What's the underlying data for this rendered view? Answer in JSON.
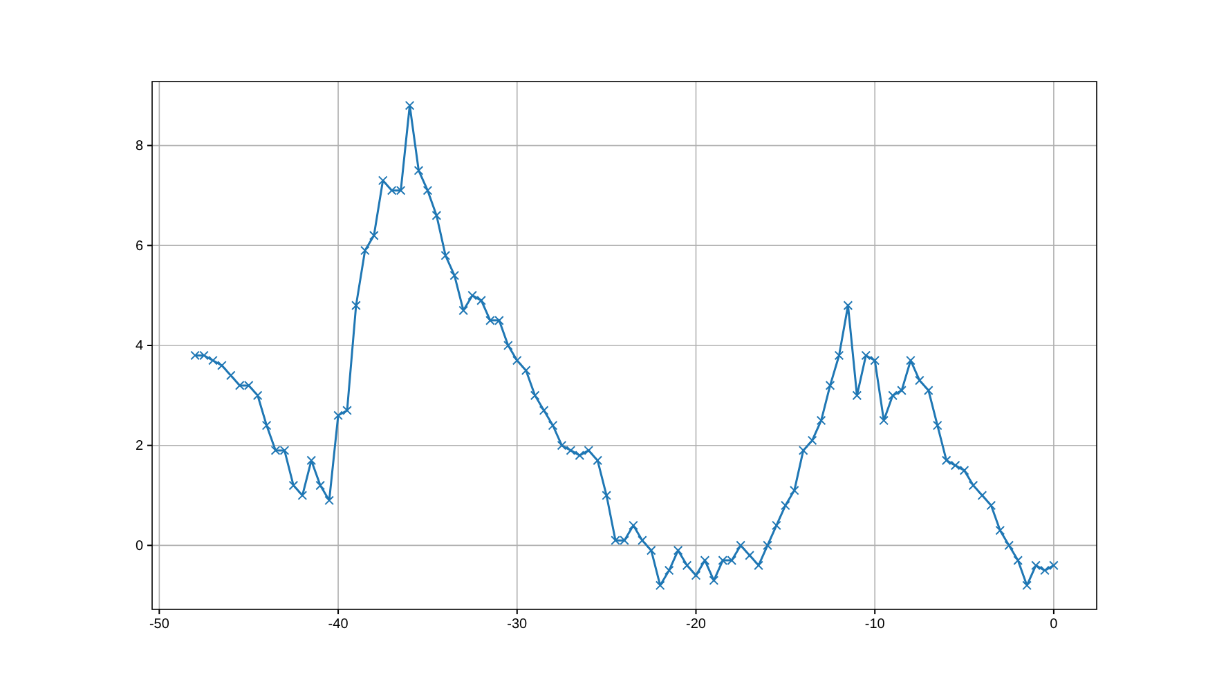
{
  "chart_data": {
    "type": "line",
    "x": [
      -48,
      -47.5,
      -47,
      -46.5,
      -46,
      -45.5,
      -45,
      -44.5,
      -44,
      -43.5,
      -43,
      -42.5,
      -42,
      -41.5,
      -41,
      -40.5,
      -40,
      -39.5,
      -39,
      -38.5,
      -38,
      -37.5,
      -37,
      -36.5,
      -36,
      -35.5,
      -35,
      -34.5,
      -34,
      -33.5,
      -33,
      -32.5,
      -32,
      -31.5,
      -31,
      -30.5,
      -30,
      -29.5,
      -29,
      -28.5,
      -28,
      -27.5,
      -27,
      -26.5,
      -26,
      -25.5,
      -25,
      -24.5,
      -24,
      -23.5,
      -23,
      -22.5,
      -22,
      -21.5,
      -21,
      -20.5,
      -20,
      -19.5,
      -19,
      -18.5,
      -18,
      -17.5,
      -17,
      -16.5,
      -16,
      -15.5,
      -15,
      -14.5,
      -14,
      -13.5,
      -13,
      -12.5,
      -12,
      -11.5,
      -11,
      -10.5,
      -10,
      -9.5,
      -9,
      -8.5,
      -8,
      -7.5,
      -7,
      -6.5,
      -6,
      -5.5,
      -5,
      -4.5,
      -4,
      -3.5,
      -3,
      -2.5,
      -2,
      -1.5,
      -1,
      -0.5,
      0
    ],
    "series": [
      {
        "color": "#1f77b4",
        "values": [
          3.8,
          3.8,
          3.7,
          3.6,
          3.4,
          3.2,
          3.2,
          3.0,
          2.4,
          1.9,
          1.9,
          1.2,
          1.0,
          1.7,
          1.2,
          0.9,
          2.6,
          2.7,
          4.8,
          5.9,
          6.2,
          7.3,
          7.1,
          7.1,
          8.8,
          7.5,
          7.1,
          6.6,
          5.8,
          5.4,
          4.7,
          5.0,
          4.9,
          4.5,
          4.5,
          4.0,
          3.7,
          3.5,
          3.0,
          2.7,
          2.4,
          2.0,
          1.9,
          1.8,
          1.9,
          1.7,
          1.0,
          0.1,
          0.1,
          0.4,
          0.1,
          -0.1,
          -0.8,
          -0.5,
          -0.1,
          -0.4,
          -0.6,
          -0.3,
          -0.7,
          -0.3,
          -0.3,
          0.0,
          -0.2,
          -0.4,
          0.0,
          0.4,
          0.8,
          1.1,
          1.9,
          2.1,
          2.5,
          3.2,
          3.8,
          4.8,
          3.0,
          3.8,
          3.7,
          2.5,
          3.0,
          3.1,
          3.7,
          3.3,
          3.1,
          2.4,
          1.7,
          1.6,
          1.5,
          1.2,
          1.0,
          0.8,
          0.3,
          0.0,
          -0.3,
          -0.8,
          -0.4,
          -0.5,
          -0.4
        ]
      }
    ],
    "xlim": [
      -50.4,
      2.4
    ],
    "xticks": [
      -50,
      -40,
      -30,
      -20,
      -10,
      0
    ],
    "ylim": [
      -1.28,
      9.28
    ],
    "yticks": [
      0,
      2,
      4,
      6,
      8
    ],
    "grid": true,
    "marker": "cross",
    "line_style": "solid"
  }
}
